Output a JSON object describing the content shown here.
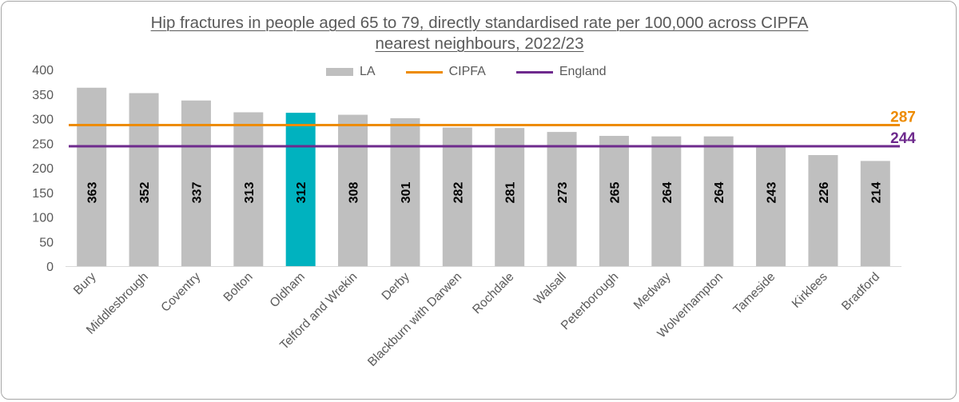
{
  "chart_data": {
    "type": "bar",
    "title": "Hip fractures in people aged 65 to 79, directly standardised rate per 100,000 across CIPFA nearest neighbours, 2022/23",
    "title_lines": [
      "Hip fractures in people aged 65 to 79, directly standardised rate per 100,000 across CIPFA",
      "nearest neighbours, 2022/23"
    ],
    "xlabel": "",
    "ylabel": "",
    "ylim": [
      0,
      400
    ],
    "yticks": [
      0,
      50,
      100,
      150,
      200,
      250,
      300,
      350,
      400
    ],
    "grid": false,
    "legend_position": "top",
    "categories": [
      "Bury",
      "Middlesbrough",
      "Coventry",
      "Bolton",
      "Oldham",
      "Telford and Wrekin",
      "Derby",
      "Blackburn with Darwen",
      "Rochdale",
      "Walsall",
      "Peterborough",
      "Medway",
      "Wolverhampton",
      "Tameside",
      "Kirklees",
      "Bradford"
    ],
    "series": [
      {
        "name": "LA",
        "type": "bar",
        "values": [
          363,
          352,
          337,
          313,
          312,
          308,
          301,
          282,
          281,
          273,
          265,
          264,
          264,
          243,
          226,
          214
        ],
        "color": "#bfbfbf",
        "highlight_category": "Oldham",
        "highlight_color": "#00b2bf"
      },
      {
        "name": "CIPFA",
        "type": "line",
        "value": 287,
        "label": "287",
        "color": "#ed8b00"
      },
      {
        "name": "England",
        "type": "line",
        "value": 244,
        "label": "244",
        "color": "#6e2a8d"
      }
    ]
  }
}
